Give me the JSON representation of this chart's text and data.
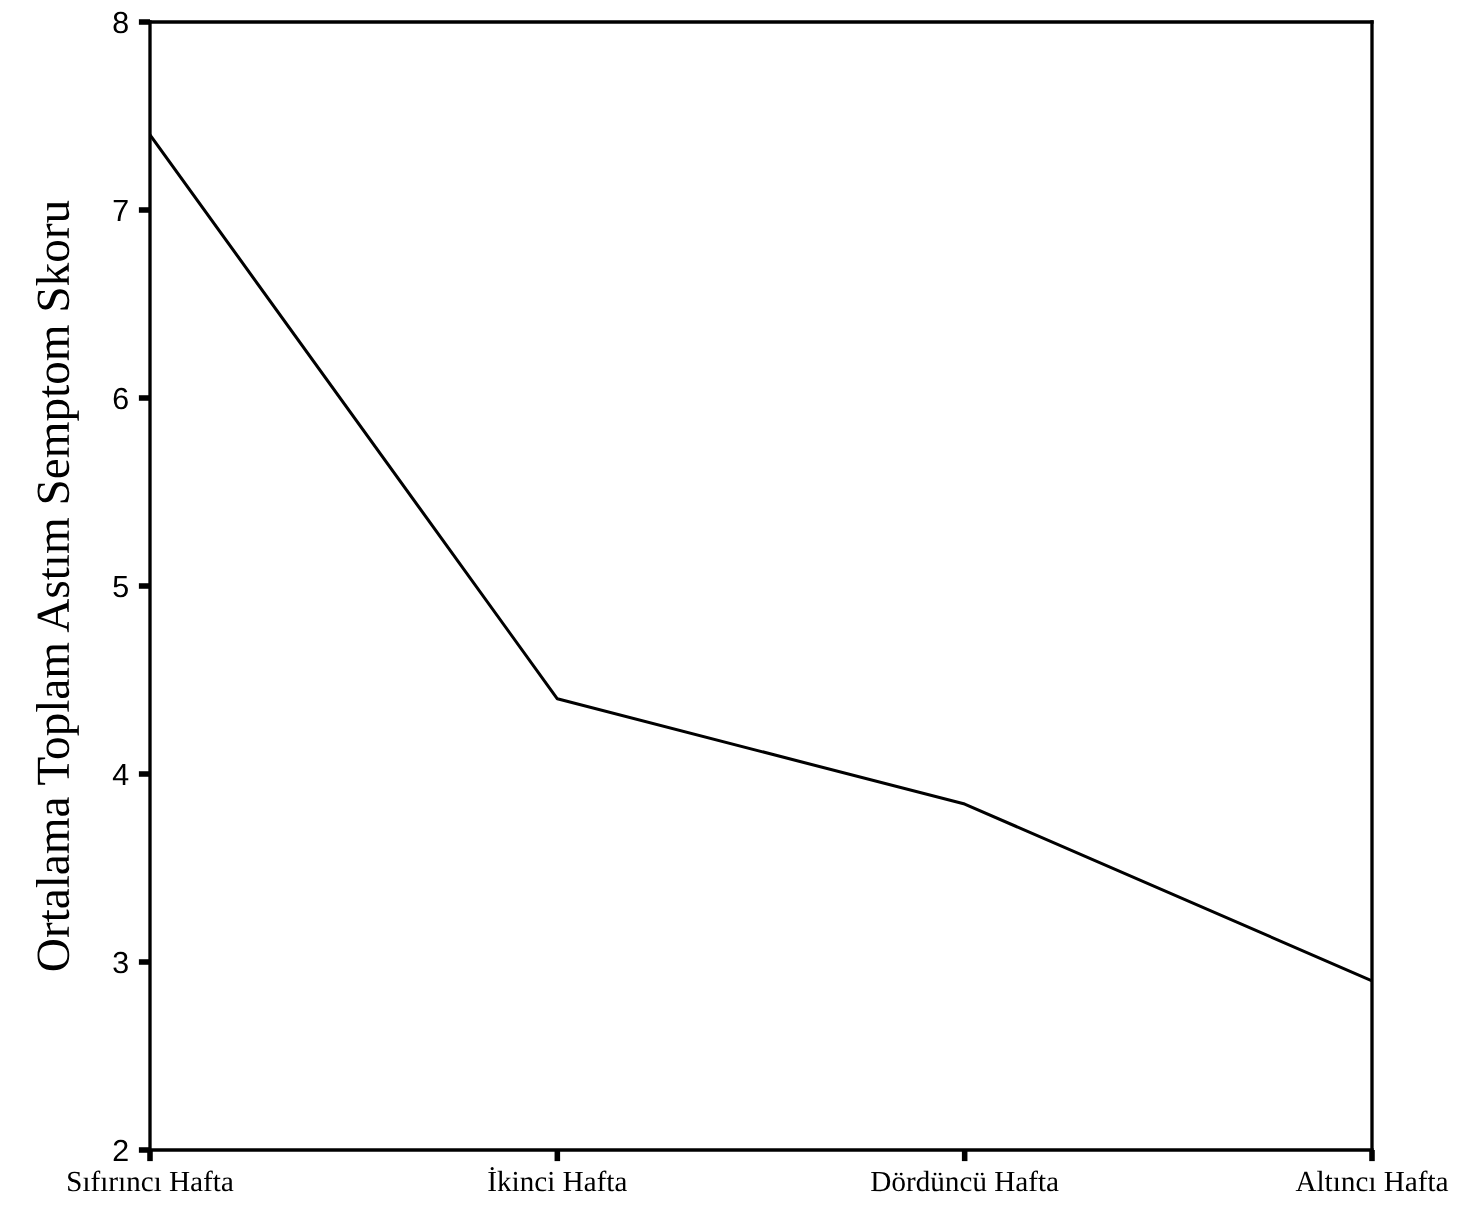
{
  "chart_data": {
    "type": "line",
    "ylabel": "Ortalama Toplam Astım Semptom Skoru",
    "categories": [
      "Sıfırıncı Hafta",
      "İkinci Hafta",
      "Dördüncü Hafta",
      "Altıncı Hafta"
    ],
    "series": [
      {
        "color": "#000000",
        "values": [
          7.4,
          4.4,
          3.84,
          2.9
        ]
      }
    ],
    "ylim": [
      2,
      8
    ],
    "yticks": [
      2,
      3,
      4,
      5,
      6,
      7,
      8
    ],
    "grid": false,
    "legend": false,
    "marker": "none",
    "line_style": "solid"
  }
}
